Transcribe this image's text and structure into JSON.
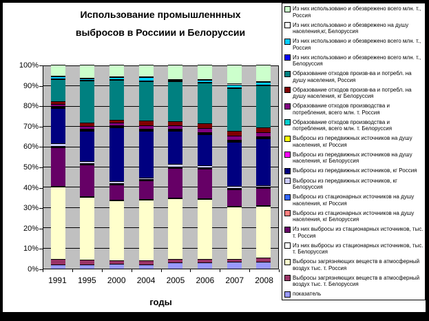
{
  "frame_color": "#000000",
  "background_color": "#FFFFFF",
  "chart_data": {
    "type": "bar",
    "variant": "100%-stacked-column",
    "title": "Использование промышленнных выбросов в Россиии и Белоруссии",
    "xlabel": "годы",
    "ylabel": "",
    "categories": [
      "1991",
      "1995",
      "2000",
      "2004",
      "2005",
      "2006",
      "2007",
      "2008"
    ],
    "y_ticks": [
      "0%",
      "10%",
      "20%",
      "30%",
      "40%",
      "50%",
      "60%",
      "70%",
      "80%",
      "90%",
      "100%"
    ],
    "ylim": [
      0,
      100
    ],
    "plot_background": "#C0C0C0",
    "grid": "horizontal, black, every 10%",
    "legend_position": "right",
    "stacking_note": "values are percent of column; series listed in legend order (top to bottom); columns stack bottom-to-top in reverse legend order",
    "series": [
      {
        "name": "Из них использовано и обезврежено всего млн. т., Россия",
        "color": "#CCFFCC",
        "values": [
          5.5,
          6.5,
          6,
          6,
          7.5,
          7.5,
          9.5,
          8.5
        ]
      },
      {
        "name": "Из них использовано и обезврежено на душу населения,кг, Белоруссия",
        "color": "#FFFFFF",
        "values": [
          0.5,
          0.3,
          0.3,
          0.3,
          0.5,
          0.3,
          0.5,
          0.3
        ]
      },
      {
        "name": "Из них использовано и обезврежено всего млн. т., Россия",
        "color": "#00CCFF",
        "values": [
          1,
          0.8,
          1,
          1.5,
          0.3,
          1,
          1.5,
          1.5
        ]
      },
      {
        "name": "Из них использовано и обезврежено всего млн. т., Белоруссия",
        "color": "#0000FF",
        "values": [
          0.3,
          0.3,
          0.3,
          0.3,
          0.3,
          0.3,
          0.3,
          0.3
        ]
      },
      {
        "name": "Образование отходов произв-ва и потребл. на душу населения, Россия",
        "color": "#008080",
        "values": [
          11,
          21,
          19.5,
          19.5,
          20,
          20.5,
          21.5,
          21
        ]
      },
      {
        "name": "Образование отходов произв-ва и потребл. на душу населения, кг Белоруссия",
        "color": "#800000",
        "values": [
          1.5,
          1.5,
          1.5,
          2.5,
          2,
          2.5,
          2.5,
          2.5
        ]
      },
      {
        "name": "Образование отходов производства и потребления, всего млн. т. Россия",
        "color": "#800080",
        "values": [
          1,
          1.5,
          1.5,
          1.5,
          2,
          2,
          2,
          2
        ]
      },
      {
        "name": "Образование отходов производства и потребления, всего млн. т. Белоруссия",
        "color": "#00CCCC",
        "values": [
          0.2,
          0.2,
          0.2,
          0.2,
          0.2,
          0.2,
          0.2,
          0.2
        ]
      },
      {
        "name": "Выбросы из передвижных источников на душу населения, кг Россия",
        "color": "#FFFF00",
        "values": [
          0.2,
          0.2,
          0.2,
          0.2,
          0.2,
          0.2,
          0.2,
          0.2
        ]
      },
      {
        "name": "Выбросы из передвижных источников на душу населения, кг Белоруссия",
        "color": "#FF00FF",
        "values": [
          0.2,
          0.2,
          0.2,
          0.2,
          0.2,
          0.2,
          0.2,
          0.2
        ]
      },
      {
        "name": "Выбросы из передвижных источников, кг Россия",
        "color": "#000080",
        "values": [
          17.5,
          15,
          26.5,
          23,
          16.5,
          15.5,
          22,
          23.5
        ]
      },
      {
        "name": "Выбросы из передвижных источников, кг Белоруссия",
        "color": "#CCCCFF",
        "values": [
          1.5,
          1,
          1,
          1,
          1.5,
          1,
          1,
          1
        ]
      },
      {
        "name": "Выбросы из стационарных источников на душу населения, кг Россия",
        "color": "#3366FF",
        "values": [
          0.2,
          0.2,
          0.2,
          0.2,
          0.2,
          0.2,
          0.2,
          0.2
        ]
      },
      {
        "name": "Выбросы из стационарных источников на душу населения, кг Белоруссия",
        "color": "#FF8080",
        "values": [
          0.2,
          0.2,
          0.2,
          0.2,
          0.2,
          0.2,
          0.2,
          0.2
        ]
      },
      {
        "name": "Из них выбросы из стационарных источников, тыс. т. Россия",
        "color": "#660066",
        "values": [
          19,
          16,
          7.5,
          9,
          15,
          15,
          8.5,
          8.5
        ]
      },
      {
        "name": "Из них выбросы из стационарных источников, тыс. т. Белоруссия",
        "color": "#FFFFFF",
        "values": [
          0.5,
          0.3,
          0.3,
          0.3,
          0.3,
          0.3,
          0.3,
          0.5
        ]
      },
      {
        "name": "Выбросы загрязняющих веществ в атмосферный воздух тыс. т. Россия",
        "color": "#FFFFCC",
        "values": [
          36,
          31,
          29.5,
          30,
          30.5,
          30,
          26,
          26
        ]
      },
      {
        "name": "Выбросы загрязняющих веществ в атмосферный воздух тыс. т. Белоруссия",
        "color": "#993366",
        "values": [
          3,
          2.5,
          1.5,
          2,
          2,
          2,
          1.5,
          2
        ]
      },
      {
        "name": "показатель",
        "color": "#9999FF",
        "values": [
          2,
          2,
          2.5,
          2,
          3,
          3,
          3.5,
          3.5
        ]
      }
    ]
  }
}
